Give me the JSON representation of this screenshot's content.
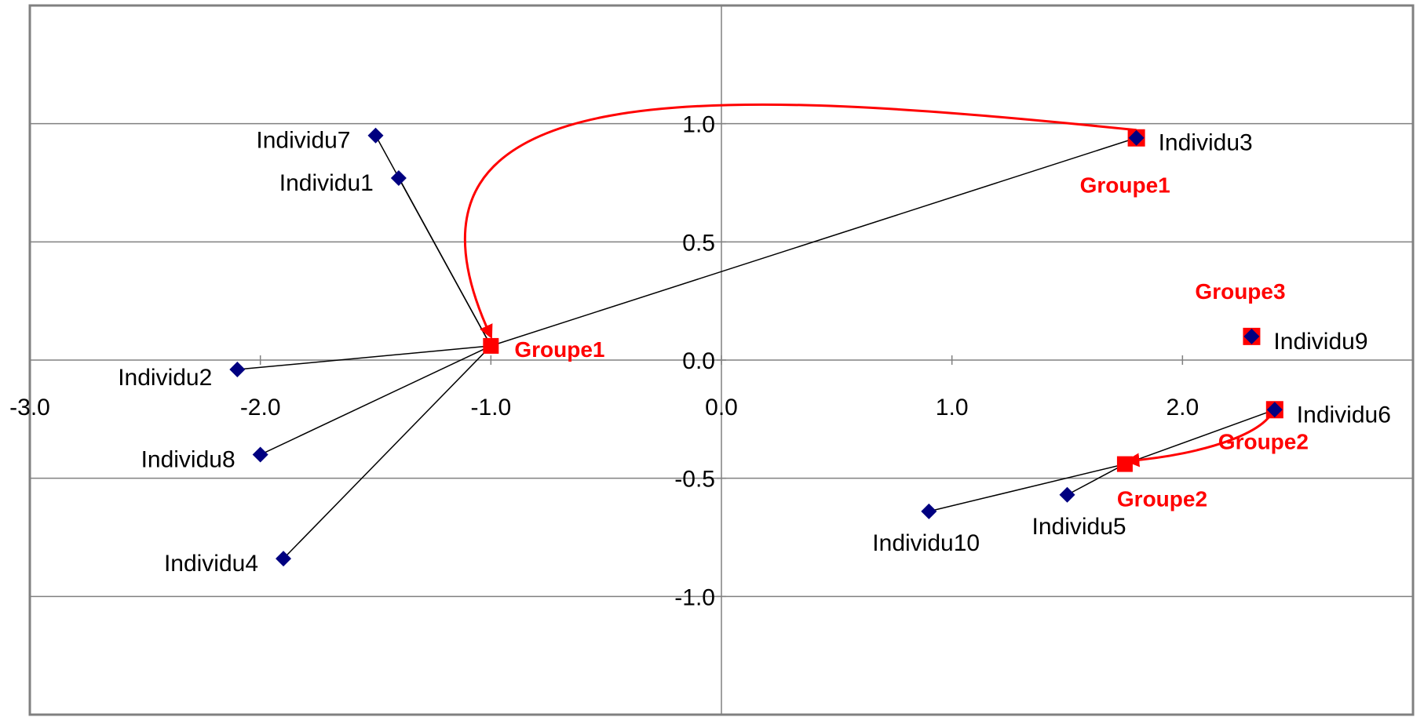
{
  "chart_data": {
    "type": "scatter",
    "title": "",
    "xlabel": "",
    "ylabel": "",
    "xlim": [
      -3.0,
      3.0
    ],
    "ylim": [
      -1.5,
      1.5
    ],
    "x_ticks": [
      -3.0,
      -2.0,
      -1.0,
      0.0,
      1.0,
      2.0
    ],
    "y_ticks": [
      1.0,
      0.5,
      0.0,
      -0.5,
      -1.0
    ],
    "x_tick_labels": [
      "-3.0",
      "-2.0",
      "-1.0",
      "0.0",
      "1.0",
      "2.0"
    ],
    "y_tick_labels": [
      "1.0",
      "0.5",
      "0.0",
      "-0.5",
      "-1.0"
    ],
    "grid": "horizontal",
    "colors": {
      "point": "#000080",
      "centroid": "#ff0000",
      "label": "#ff0000",
      "arrow": "#ff0000",
      "link": "#000000",
      "gridline": "#808080"
    },
    "points": [
      {
        "name": "Individu7",
        "x": -1.5,
        "y": 0.95
      },
      {
        "name": "Individu1",
        "x": -1.4,
        "y": 0.77
      },
      {
        "name": "Individu2",
        "x": -2.1,
        "y": -0.04
      },
      {
        "name": "Individu8",
        "x": -2.0,
        "y": -0.4
      },
      {
        "name": "Individu4",
        "x": -1.9,
        "y": -0.84
      },
      {
        "name": "Individu3",
        "x": 1.8,
        "y": 0.94
      },
      {
        "name": "Individu9",
        "x": 2.3,
        "y": 0.1
      },
      {
        "name": "Individu6",
        "x": 2.4,
        "y": -0.21
      },
      {
        "name": "Individu5",
        "x": 1.5,
        "y": -0.57
      },
      {
        "name": "Individu10",
        "x": 0.9,
        "y": -0.64
      }
    ],
    "centroids": [
      {
        "label": "Groupe1",
        "x": -1.0,
        "y": 0.06
      },
      {
        "label": "Groupe2",
        "x": 1.75,
        "y": -0.44
      }
    ],
    "seed_points": [
      "Individu3",
      "Individu9",
      "Individu6"
    ],
    "seed_labels": [
      {
        "label": "Groupe1",
        "near": "Individu3"
      },
      {
        "label": "Groupe3",
        "near": "Individu9"
      },
      {
        "label": "Groupe2",
        "near": "Individu6"
      }
    ],
    "links": [
      {
        "from": "Groupe1",
        "to": "Individu7"
      },
      {
        "from": "Groupe1",
        "to": "Individu1"
      },
      {
        "from": "Groupe1",
        "to": "Individu2"
      },
      {
        "from": "Groupe1",
        "to": "Individu8"
      },
      {
        "from": "Groupe1",
        "to": "Individu4"
      },
      {
        "from": "Groupe1",
        "to": "Individu3"
      },
      {
        "from": "Groupe2",
        "to": "Individu6"
      },
      {
        "from": "Groupe2",
        "to": "Individu5"
      },
      {
        "from": "Groupe2",
        "to": "Individu10"
      }
    ],
    "arrows": [
      {
        "from": "Individu3",
        "to": "Groupe1"
      },
      {
        "from": "Individu6",
        "to": "Groupe2"
      }
    ]
  }
}
